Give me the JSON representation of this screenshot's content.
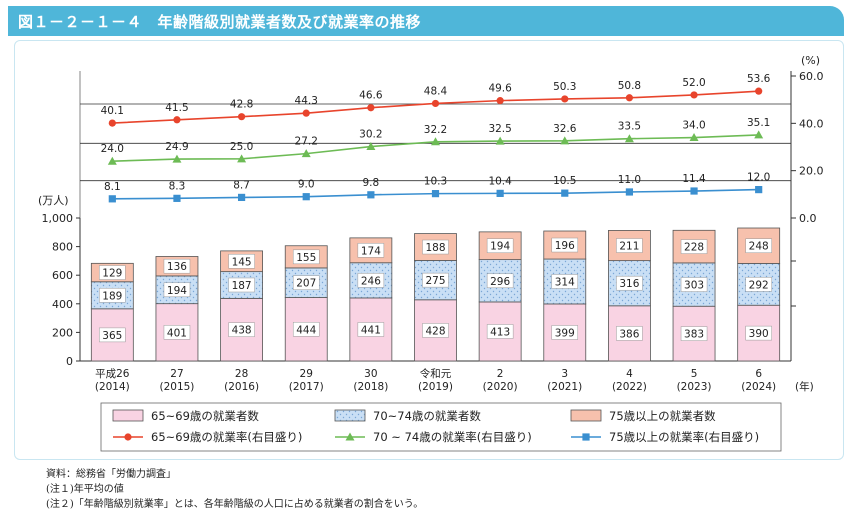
{
  "title": "図１－２－１－４　年齢階級別就業者数及び就業率の推移",
  "chart_data": {
    "type": "bar",
    "categories": [
      [
        "平成26",
        "(2014)"
      ],
      [
        "27",
        "(2015)"
      ],
      [
        "28",
        "(2016)"
      ],
      [
        "29",
        "(2017)"
      ],
      [
        "30",
        "(2018)"
      ],
      [
        "令和元",
        "(2019)"
      ],
      [
        "2",
        "(2020)"
      ],
      [
        "3",
        "(2021)"
      ],
      [
        "4",
        "(2022)"
      ],
      [
        "5",
        "(2023)"
      ],
      [
        "6",
        "(2024)"
      ]
    ],
    "x_unit": "(年)",
    "left_axis": {
      "unit": "(万人)",
      "ticks": [
        0,
        200,
        400,
        600,
        800,
        1000
      ],
      "tick_labels": [
        "0",
        "200",
        "400",
        "600",
        "800",
        "1,000"
      ],
      "ylim": [
        0,
        1000
      ]
    },
    "right_axis": {
      "unit": "(%)",
      "ticks": [
        0,
        20,
        40,
        60
      ],
      "tick_labels": [
        "0.0",
        "20.0",
        "40.0",
        "60.0"
      ]
    },
    "bar_series": [
      {
        "name": "65~69歳の就業者数",
        "color": "#f9d3e3",
        "values": [
          365,
          401,
          438,
          444,
          441,
          428,
          413,
          399,
          386,
          383,
          390
        ]
      },
      {
        "name": "70~74歳の就業者数",
        "color": "#c9dff5",
        "values": [
          189,
          194,
          187,
          207,
          246,
          275,
          296,
          314,
          316,
          303,
          292
        ]
      },
      {
        "name": "75歳以上の就業者数",
        "color": "#f7c1ad",
        "values": [
          129,
          136,
          145,
          155,
          174,
          188,
          194,
          196,
          211,
          228,
          248
        ]
      }
    ],
    "line_series": [
      {
        "name": "65~69歳の就業率(右目盛り)",
        "color": "#e8442c",
        "marker": "circle",
        "values": [
          40.1,
          41.5,
          42.8,
          44.3,
          46.6,
          48.4,
          49.6,
          50.3,
          50.8,
          52.0,
          53.6
        ],
        "labels": [
          "40.1",
          "41.5",
          "42.8",
          "44.3",
          "46.6",
          "48.4",
          "49.6",
          "50.3",
          "50.8",
          "52.0",
          "53.6"
        ]
      },
      {
        "name": "70 ~ 74歳の就業率(右目盛り)",
        "color": "#6dbb55",
        "marker": "triangle",
        "values": [
          24.0,
          24.9,
          25.0,
          27.2,
          30.2,
          32.2,
          32.5,
          32.6,
          33.5,
          34.0,
          35.1
        ],
        "labels": [
          "24.0",
          "24.9",
          "25.0",
          "27.2",
          "30.2",
          "32.2",
          "32.5",
          "32.6",
          "33.5",
          "34.0",
          "35.1"
        ]
      },
      {
        "name": "75歳以上の就業率(右目盛り)",
        "color": "#3a8fd0",
        "marker": "square",
        "values": [
          8.1,
          8.3,
          8.7,
          9.0,
          9.8,
          10.3,
          10.4,
          10.5,
          11.0,
          11.4,
          12.0
        ],
        "labels": [
          "8.1",
          "8.3",
          "8.7",
          "9.0",
          "9.8",
          "10.3",
          "10.4",
          "10.5",
          "11.0",
          "11.4",
          "12.0"
        ]
      }
    ],
    "legend_placement": "bottom",
    "grid": false
  },
  "notes": [
    "資料：総務省「労働力調査」",
    "(注１)年平均の値",
    "(注２)「年齢階級別就業率」とは、各年齢階級の人口に占める就業者の割合をいう。"
  ]
}
